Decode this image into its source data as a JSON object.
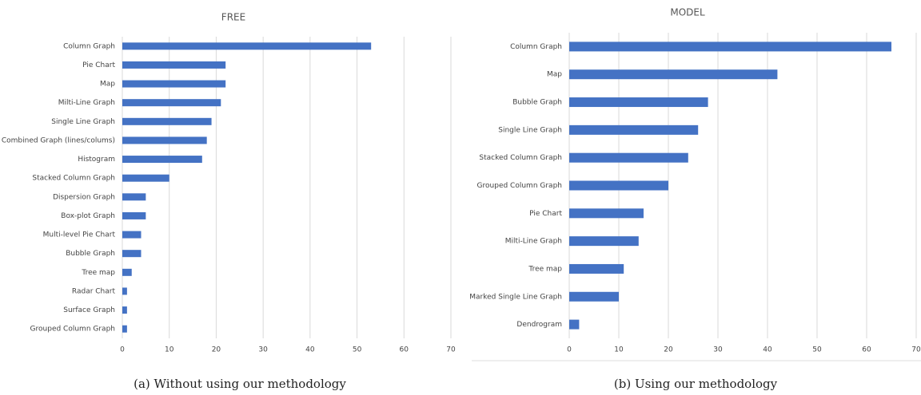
{
  "chart_data": [
    {
      "type": "bar",
      "orientation": "horizontal",
      "title": "FREE",
      "caption": "(a) Without using our methodology",
      "categories": [
        "Column Graph",
        "Pie Chart",
        "Map",
        "Milti-Line Graph",
        "Single Line Graph",
        "Combined Graph (lines/colums)",
        "Histogram",
        "Stacked Column Graph",
        "Dispersion Graph",
        "Box-plot Graph",
        "Multi-level Pie Chart",
        "Bubble Graph",
        "Tree map",
        "Radar Chart",
        "Surface Graph",
        "Grouped Column Graph"
      ],
      "values": [
        53,
        22,
        22,
        21,
        19,
        18,
        17,
        10,
        5,
        5,
        4,
        4,
        2,
        1,
        1,
        1
      ],
      "color": "#4472c4",
      "xlim": [
        0,
        70
      ],
      "xticks": [
        0,
        10,
        20,
        30,
        40,
        50,
        60,
        70
      ],
      "grid": true
    },
    {
      "type": "bar",
      "orientation": "horizontal",
      "title": "MODEL",
      "caption": "(b) Using our methodology",
      "categories": [
        "Column Graph",
        "Map",
        "Bubble Graph",
        "Single Line Graph",
        "Stacked Column Graph",
        "Grouped Column Graph",
        "Pie Chart",
        "Milti-Line Graph",
        "Tree map",
        "Marked Single Line Graph",
        "Dendrogram"
      ],
      "values": [
        65,
        42,
        28,
        26,
        24,
        20,
        15,
        14,
        11,
        10,
        2
      ],
      "color": "#4472c4",
      "xlim": [
        0,
        70
      ],
      "xticks": [
        0,
        10,
        20,
        30,
        40,
        50,
        60,
        70
      ],
      "grid": true
    }
  ]
}
